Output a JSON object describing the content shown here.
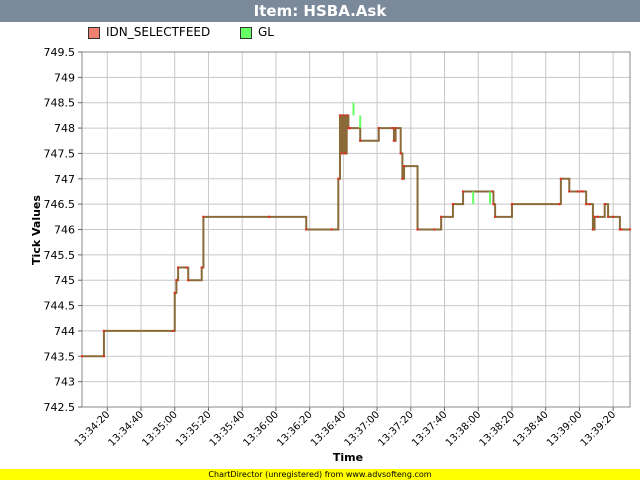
{
  "header": {
    "title": "Item: HSBA.Ask"
  },
  "footer": {
    "text": "ChartDirector (unregistered) from www.advsofteng.com"
  },
  "colors": {
    "title_bg": "#7a8a9a",
    "series1": "#e03020",
    "series1_swatch": "#f08070",
    "series2": "#66ff66",
    "trace": "#8b6a3a"
  },
  "chart_data": {
    "type": "line",
    "xlabel": "Time",
    "ylabel": "Tick Values",
    "ylim": [
      742.5,
      749.5
    ],
    "yticks": [
      742.5,
      743,
      743.5,
      744,
      744.5,
      745,
      745.5,
      746,
      746.5,
      747,
      747.5,
      748,
      748.5,
      749,
      749.5
    ],
    "xlim": [
      "13:34:05",
      "13:39:30"
    ],
    "xticks": [
      "13:34:20",
      "13:34:40",
      "13:35:00",
      "13:35:20",
      "13:35:40",
      "13:36:00",
      "13:36:20",
      "13:36:40",
      "13:37:00",
      "13:37:20",
      "13:37:40",
      "13:38:00",
      "13:38:20",
      "13:38:40",
      "13:39:00",
      "13:39:20"
    ],
    "grid": true,
    "legend_position": "top-left",
    "series": [
      {
        "name": "IDN_SELECTFEED",
        "x": [
          "13:34:05",
          "13:34:18",
          "13:34:18",
          "13:34:59",
          "13:35:00",
          "13:35:01",
          "13:35:02",
          "13:35:07",
          "13:35:08",
          "13:35:16",
          "13:35:17",
          "13:35:56",
          "13:36:18",
          "13:36:33",
          "13:36:37",
          "13:36:38",
          "13:36:39",
          "13:36:40",
          "13:36:41",
          "13:36:42",
          "13:36:43",
          "13:36:44",
          "13:36:50",
          "13:37:01",
          "13:37:09",
          "13:37:10",
          "13:37:11",
          "13:37:14",
          "13:37:15",
          "13:37:16",
          "13:37:24",
          "13:37:34",
          "13:37:38",
          "13:37:45",
          "13:37:51",
          "13:38:08",
          "13:38:09",
          "13:38:10",
          "13:38:20",
          "13:38:48",
          "13:38:49",
          "13:38:54",
          "13:38:59",
          "13:39:01",
          "13:39:02",
          "13:39:04",
          "13:39:06",
          "13:39:08",
          "13:39:09",
          "13:39:11",
          "13:39:15",
          "13:39:17",
          "13:39:20",
          "13:39:24",
          "13:39:25",
          "13:39:30"
        ],
        "y": [
          743.5,
          743.5,
          744,
          744,
          744.75,
          745,
          745.25,
          745.25,
          745,
          745.25,
          746.25,
          746.25,
          746,
          746,
          747,
          748.25,
          747.5,
          748.25,
          747.5,
          748.25,
          748,
          748,
          747.75,
          748,
          748,
          747.75,
          748,
          747.5,
          747,
          747.25,
          746,
          746,
          746.25,
          746.5,
          746.75,
          746.75,
          746.5,
          746.25,
          746.5,
          746.5,
          747,
          746.75,
          746.75,
          746.75,
          746.75,
          746.5,
          746.5,
          746,
          746.25,
          746.25,
          746.5,
          746.25,
          746.25,
          746,
          746,
          746
        ]
      },
      {
        "name": "GL",
        "x": [
          "13:36:46",
          "13:36:50",
          "13:37:57",
          "13:38:07"
        ],
        "y": [
          748.5,
          748.25,
          746.75,
          746.75
        ]
      }
    ]
  }
}
